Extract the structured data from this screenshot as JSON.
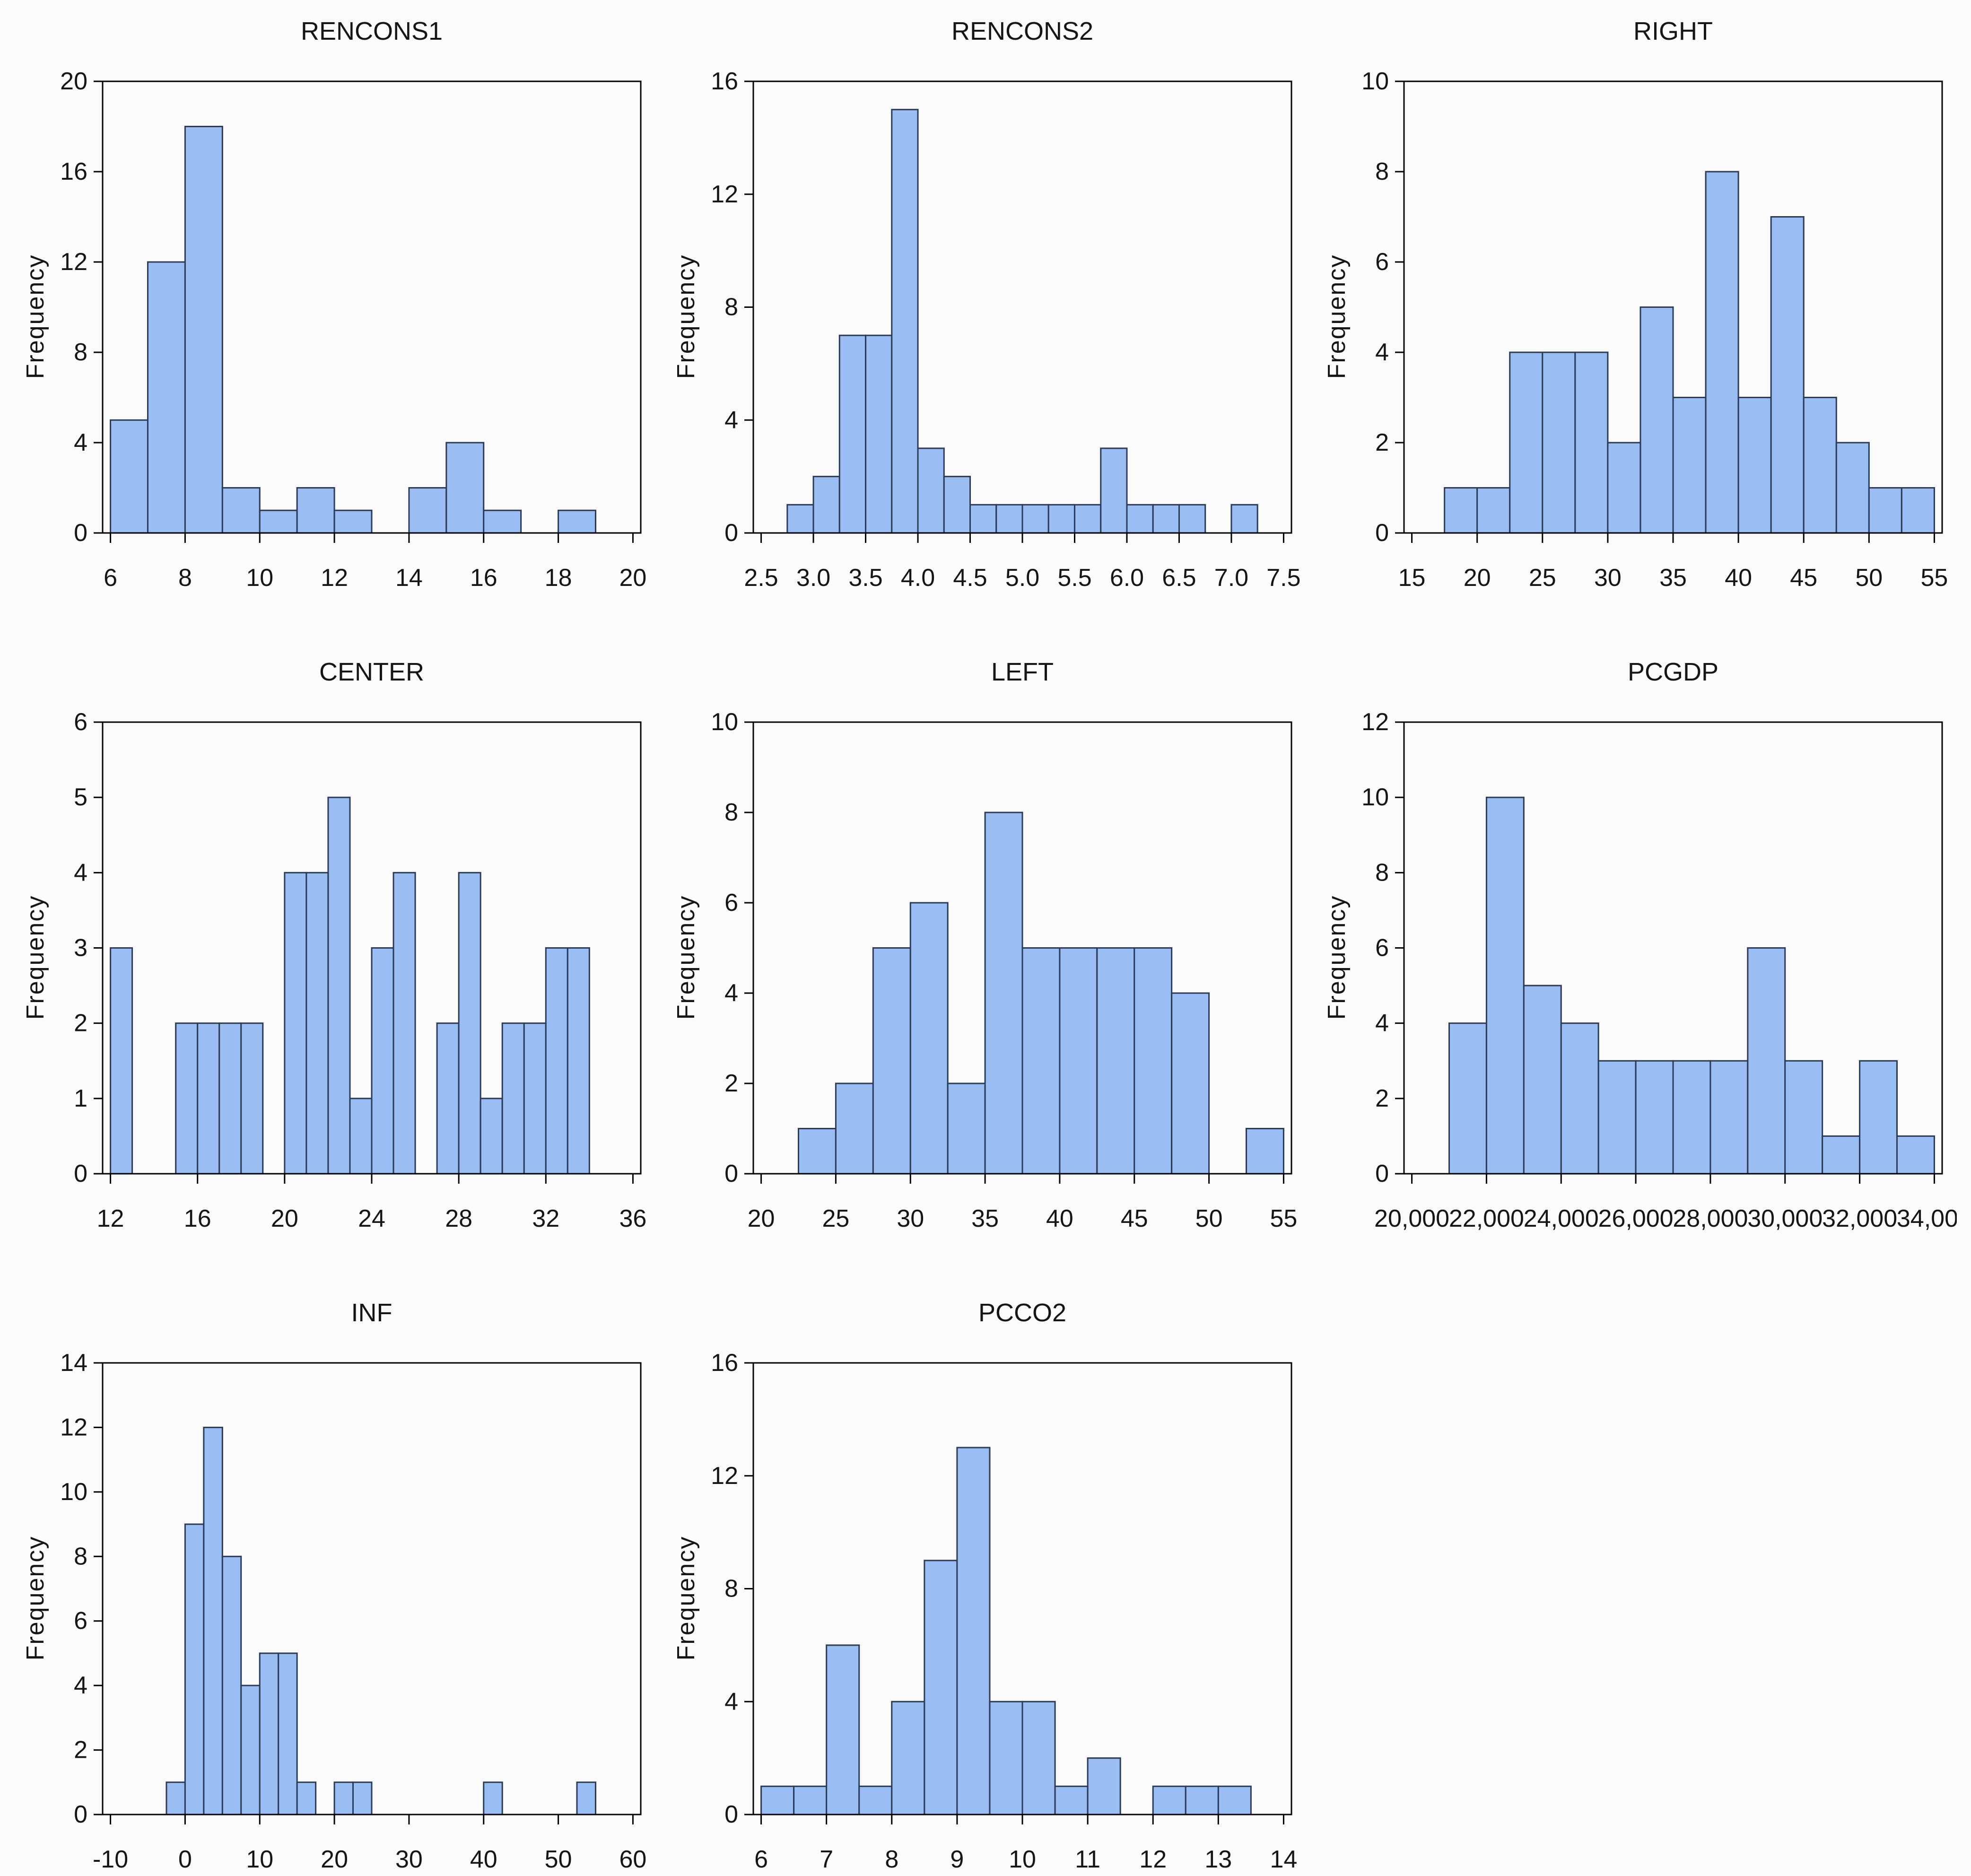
{
  "page": {
    "background": "#fbfbfb"
  },
  "style": {
    "bar_fill": "#9abdf3",
    "bar_stroke": "#2b3b58",
    "axis_color": "#000000",
    "text_color": "#151515"
  },
  "chart_data": [
    {
      "type": "bar",
      "title": "RENCONS1",
      "ylabel": "Frequency",
      "bin_start": 6,
      "bin_width": 1,
      "counts": [
        5,
        12,
        18,
        2,
        1,
        2,
        1,
        0,
        2,
        4,
        1,
        0,
        1
      ],
      "xlim": [
        6,
        20
      ],
      "ylim": [
        0,
        20
      ],
      "xticks": [
        6,
        8,
        10,
        12,
        14,
        16,
        18,
        20
      ],
      "xtick_labels": [
        "6",
        "8",
        "10",
        "12",
        "14",
        "16",
        "18",
        "20"
      ],
      "yticks": [
        0,
        4,
        8,
        12,
        16,
        20
      ],
      "grid": false,
      "legend": "none"
    },
    {
      "type": "bar",
      "title": "RENCONS2",
      "ylabel": "Frequency",
      "bin_start": 2.75,
      "bin_width": 0.25,
      "counts": [
        1,
        2,
        7,
        7,
        15,
        3,
        2,
        1,
        1,
        1,
        1,
        1,
        3,
        1,
        1,
        1,
        0,
        1
      ],
      "xlim": [
        2.5,
        7.5
      ],
      "ylim": [
        0,
        16
      ],
      "xticks": [
        2.5,
        3.0,
        3.5,
        4.0,
        4.5,
        5.0,
        5.5,
        6.0,
        6.5,
        7.0,
        7.5
      ],
      "xtick_labels": [
        "2.5",
        "3.0",
        "3.5",
        "4.0",
        "4.5",
        "5.0",
        "5.5",
        "6.0",
        "6.5",
        "7.0",
        "7.5"
      ],
      "yticks": [
        0,
        4,
        8,
        12,
        16
      ],
      "grid": false,
      "legend": "none"
    },
    {
      "type": "bar",
      "title": "RIGHT",
      "ylabel": "Frequency",
      "bin_start": 17.5,
      "bin_width": 2.5,
      "counts": [
        1,
        1,
        4,
        4,
        4,
        2,
        5,
        3,
        8,
        3,
        7,
        3,
        2,
        1,
        1
      ],
      "xlim": [
        15,
        55
      ],
      "ylim": [
        0,
        10
      ],
      "xticks": [
        15,
        20,
        25,
        30,
        35,
        40,
        45,
        50,
        55
      ],
      "xtick_labels": [
        "15",
        "20",
        "25",
        "30",
        "35",
        "40",
        "45",
        "50",
        "55"
      ],
      "yticks": [
        0,
        2,
        4,
        6,
        8,
        10
      ],
      "grid": false,
      "legend": "none"
    },
    {
      "type": "bar",
      "title": "CENTER",
      "ylabel": "Frequency",
      "bin_start": 12,
      "bin_width": 1,
      "counts": [
        3,
        0,
        0,
        2,
        2,
        2,
        2,
        0,
        4,
        4,
        5,
        1,
        3,
        4,
        0,
        2,
        4,
        1,
        2,
        2,
        3,
        3
      ],
      "xlim": [
        12,
        36
      ],
      "ylim": [
        0,
        6
      ],
      "xticks": [
        12,
        16,
        20,
        24,
        28,
        32,
        36
      ],
      "xtick_labels": [
        "12",
        "16",
        "20",
        "24",
        "28",
        "32",
        "36"
      ],
      "yticks": [
        0,
        1,
        2,
        3,
        4,
        5,
        6
      ],
      "grid": false,
      "legend": "none"
    },
    {
      "type": "bar",
      "title": "LEFT",
      "ylabel": "Frequency",
      "bin_start": 22.5,
      "bin_width": 2.5,
      "counts": [
        1,
        2,
        5,
        6,
        2,
        8,
        5,
        5,
        5,
        5,
        4,
        0,
        1
      ],
      "xlim": [
        20,
        55
      ],
      "ylim": [
        0,
        10
      ],
      "xticks": [
        20,
        25,
        30,
        35,
        40,
        45,
        50,
        55
      ],
      "xtick_labels": [
        "20",
        "25",
        "30",
        "35",
        "40",
        "45",
        "50",
        "55"
      ],
      "yticks": [
        0,
        2,
        4,
        6,
        8,
        10
      ],
      "grid": false,
      "legend": "none"
    },
    {
      "type": "bar",
      "title": "PCGDP",
      "ylabel": "Frequency",
      "bin_start": 21000,
      "bin_width": 1000,
      "counts": [
        4,
        10,
        5,
        4,
        3,
        3,
        3,
        3,
        6,
        3,
        1,
        3,
        1
      ],
      "xlim": [
        20000,
        34000
      ],
      "ylim": [
        0,
        12
      ],
      "xticks": [
        20000,
        22000,
        24000,
        26000,
        28000,
        30000,
        32000,
        34000
      ],
      "xtick_labels": [
        "20,000",
        "22,000",
        "24,000",
        "26,000",
        "28,000",
        "30,000",
        "32,000",
        "34,000"
      ],
      "yticks": [
        0,
        2,
        4,
        6,
        8,
        10,
        12
      ],
      "grid": false,
      "legend": "none"
    },
    {
      "type": "bar",
      "title": "INF",
      "ylabel": "Frequency",
      "bin_start": -2.5,
      "bin_width": 2.5,
      "counts": [
        1,
        9,
        12,
        8,
        4,
        5,
        5,
        1,
        0,
        1,
        1,
        0,
        0,
        0,
        0,
        0,
        0,
        1,
        0,
        0,
        0,
        0,
        1
      ],
      "xlim": [
        -10,
        60
      ],
      "ylim": [
        0,
        14
      ],
      "xticks": [
        -10,
        0,
        10,
        20,
        30,
        40,
        50,
        60
      ],
      "xtick_labels": [
        "-10",
        "0",
        "10",
        "20",
        "30",
        "40",
        "50",
        "60"
      ],
      "yticks": [
        0,
        2,
        4,
        6,
        8,
        10,
        12,
        14
      ],
      "grid": false,
      "legend": "none"
    },
    {
      "type": "bar",
      "title": "PCCO2",
      "ylabel": "Frequency",
      "bin_start": 6,
      "bin_width": 0.5,
      "counts": [
        1,
        1,
        6,
        1,
        4,
        9,
        13,
        4,
        4,
        1,
        2,
        0,
        1,
        1,
        1
      ],
      "xlim": [
        6,
        14
      ],
      "ylim": [
        0,
        16
      ],
      "xticks": [
        6,
        7,
        8,
        9,
        10,
        11,
        12,
        13,
        14
      ],
      "xtick_labels": [
        "6",
        "7",
        "8",
        "9",
        "10",
        "11",
        "12",
        "13",
        "14"
      ],
      "yticks": [
        0,
        4,
        8,
        12,
        16
      ],
      "grid": false,
      "legend": "none"
    }
  ]
}
